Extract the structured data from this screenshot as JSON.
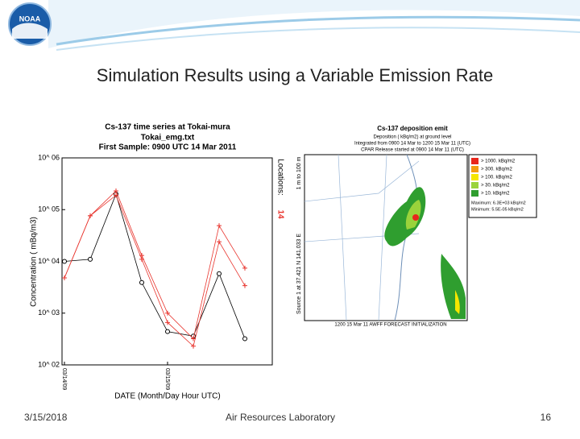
{
  "slide": {
    "title": "Simulation Results using a Variable Emission Rate",
    "footer_date": "3/15/2018",
    "footer_center": "Air Resources Laboratory",
    "page_number": "16",
    "logo": "NOAA"
  },
  "chart_data": {
    "type": "line",
    "title": [
      "Cs-137 time series at Tokai-mura",
      "Tokai_emg.txt",
      "First Sample: 0900 UTC 14 Mar 2011"
    ],
    "y_label": "Concentration ( mBq/m3)",
    "x_label": "DATE (Month/Day Hour UTC)",
    "side_label": "Locations:",
    "side_value": "14",
    "categories": [
      "03/14/09",
      null,
      null,
      null,
      "03/15/09",
      null,
      null,
      null
    ],
    "log_y": true,
    "ylim": [
      100,
      1000000
    ],
    "yticks": [
      {
        "value": 100,
        "label": "10^ 02"
      },
      {
        "value": 1000,
        "label": "10^ 03"
      },
      {
        "value": 10000,
        "label": "10^ 04"
      },
      {
        "value": 100000,
        "label": "10^ 05"
      },
      {
        "value": 1000000,
        "label": "10^ 06"
      }
    ],
    "series": [
      {
        "color": "#000000",
        "marker": "circle",
        "values": [
          10000,
          11000,
          200000,
          3900,
          440,
          360,
          5800,
          320
        ]
      },
      {
        "color": "#e8332c",
        "marker": "plus",
        "values": [
          4800,
          76000,
          230000,
          13000,
          1000,
          320,
          49000,
          7400
        ]
      },
      {
        "color": "#e8332c",
        "marker": "plus",
        "values": [
          4800,
          76000,
          190000,
          11000,
          660,
          230,
          24000,
          3400
        ]
      }
    ]
  },
  "map": {
    "title": "Cs-137 deposition emit",
    "lines": [
      "Deposition ( kBq/m2) at ground level",
      "Integrated from 0900 14 Mar to 1200 15 Mar 11 (UTC)",
      "CPAR Release started at 0900 14 Mar 11 (UTC)"
    ],
    "legend": [
      "> 1000. kBq/m2",
      "> 300. kBq/m2",
      "> 100. kBq/m2",
      "> 30. kBq/m2",
      "> 10. kBq/m2"
    ],
    "legend_colors": [
      "#e8261c",
      "#f39c12",
      "#f5e600",
      "#9ad33b",
      "#2f9e2f"
    ],
    "stats": [
      "Maximum: 6.3E+03 kBq/m2",
      "Minimum: 5.5E-05 kBq/m2"
    ],
    "source": "Source 1 at 37.421 N 141.033 E",
    "height": "1 m to 100 m",
    "footer": "1200 15 Mar 11 AWFF FORECAST INITIALIZATION"
  }
}
